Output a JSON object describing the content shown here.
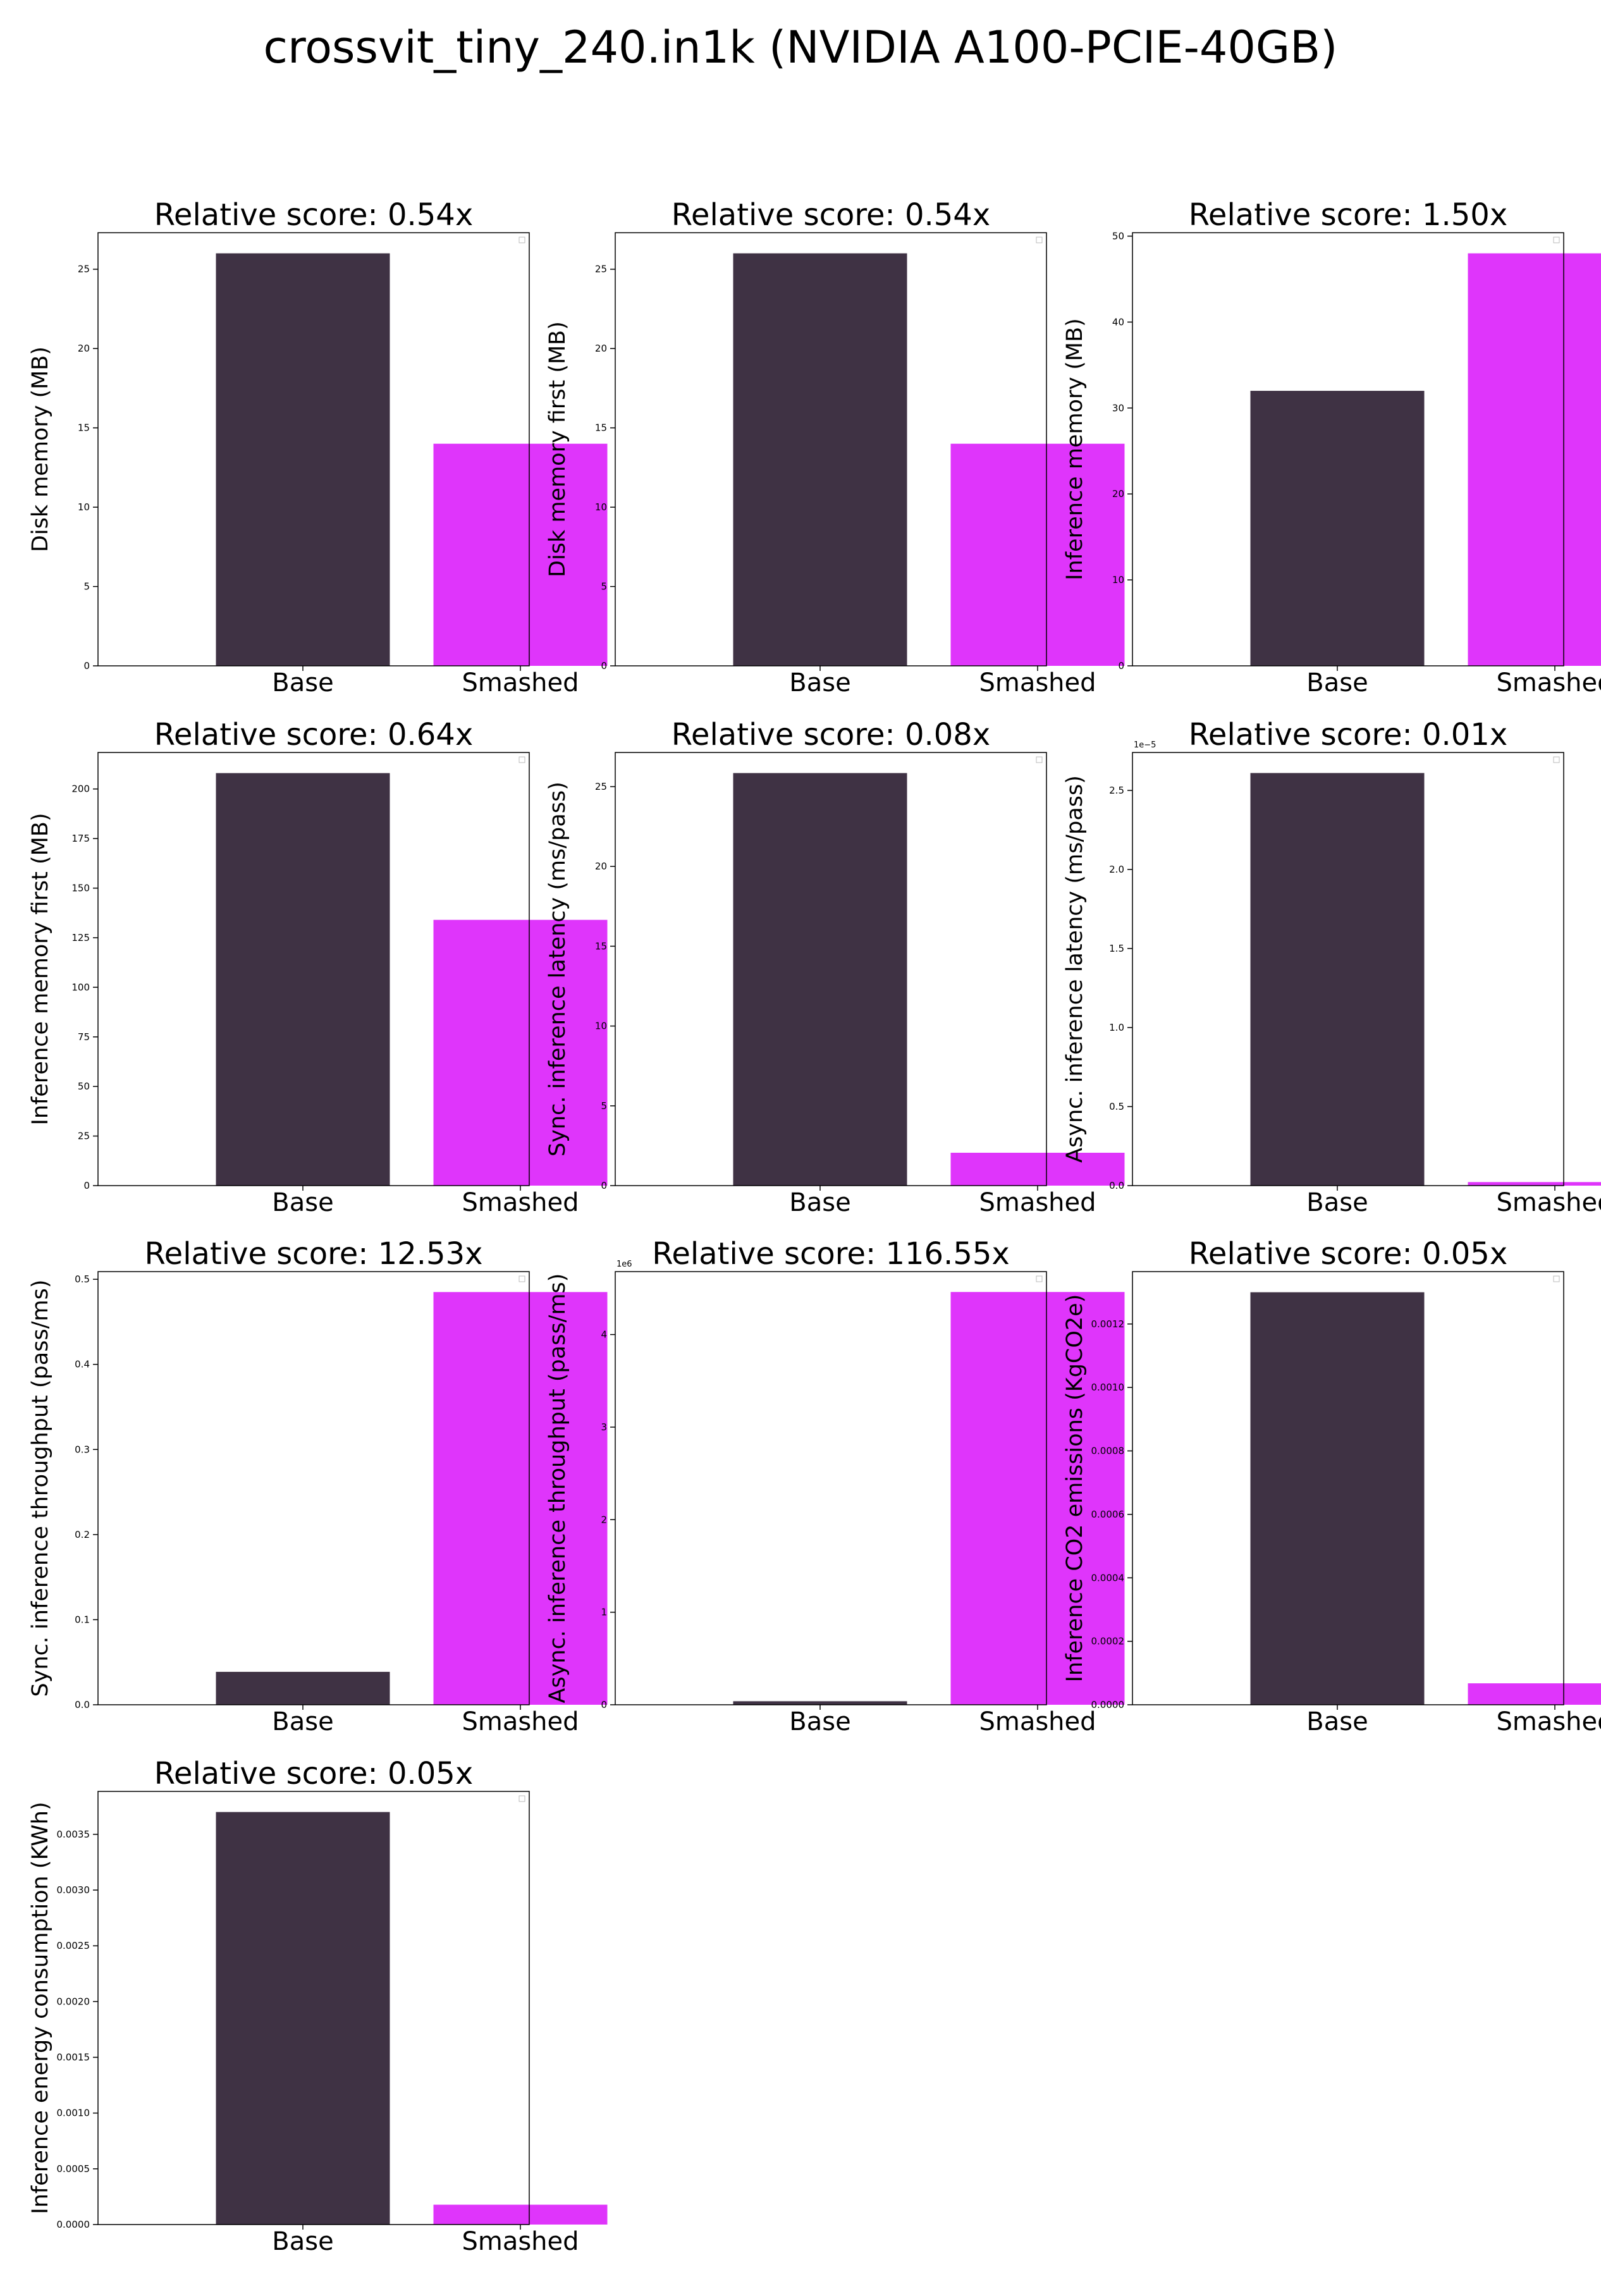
{
  "figure": {
    "title": "crossvit_tiny_240.in1k (NVIDIA A100-PCIE-40GB)"
  },
  "colors": {
    "base": "#3f3244",
    "smashed": "#df35fb"
  },
  "chart_data": [
    {
      "type": "bar",
      "title": "Relative score: 0.54x",
      "ylabel": "Disk memory (MB)",
      "categories": [
        "Base",
        "Smashed"
      ],
      "values": [
        26.0,
        14.0
      ],
      "ylim": [
        0,
        27.3
      ],
      "yticks": [
        0,
        5,
        10,
        15,
        20,
        25
      ],
      "yticklabels": [
        "0",
        "5",
        "10",
        "15",
        "20",
        "25"
      ],
      "offset_label": ""
    },
    {
      "type": "bar",
      "title": "Relative score: 0.54x",
      "ylabel": "Disk memory first (MB)",
      "categories": [
        "Base",
        "Smashed"
      ],
      "values": [
        26.0,
        14.0
      ],
      "ylim": [
        0,
        27.3
      ],
      "yticks": [
        0,
        5,
        10,
        15,
        20,
        25
      ],
      "yticklabels": [
        "0",
        "5",
        "10",
        "15",
        "20",
        "25"
      ],
      "offset_label": ""
    },
    {
      "type": "bar",
      "title": "Relative score: 1.50x",
      "ylabel": "Inference memory (MB)",
      "categories": [
        "Base",
        "Smashed"
      ],
      "values": [
        32.0,
        48.0
      ],
      "ylim": [
        0,
        50.4
      ],
      "yticks": [
        0,
        10,
        20,
        30,
        40,
        50
      ],
      "yticklabels": [
        "0",
        "10",
        "20",
        "30",
        "40",
        "50"
      ],
      "offset_label": ""
    },
    {
      "type": "bar",
      "title": "Relative score: 0.64x",
      "ylabel": "Inference memory first (MB)",
      "categories": [
        "Base",
        "Smashed"
      ],
      "values": [
        208.0,
        134.0
      ],
      "ylim": [
        0,
        218.4
      ],
      "yticks": [
        0,
        25,
        50,
        75,
        100,
        125,
        150,
        175,
        200
      ],
      "yticklabels": [
        "0",
        "25",
        "50",
        "75",
        "100",
        "125",
        "150",
        "175",
        "200"
      ],
      "offset_label": ""
    },
    {
      "type": "bar",
      "title": "Relative score: 0.08x",
      "ylabel": "Sync. inference latency (ms/pass)",
      "categories": [
        "Base",
        "Smashed"
      ],
      "values": [
        25.85,
        2.06
      ],
      "ylim": [
        0,
        27.14
      ],
      "yticks": [
        0,
        5,
        10,
        15,
        20,
        25
      ],
      "yticklabels": [
        "0",
        "5",
        "10",
        "15",
        "20",
        "25"
      ],
      "offset_label": ""
    },
    {
      "type": "bar",
      "title": "Relative score: 0.01x",
      "ylabel": "Async. inference latency (ms/pass)",
      "categories": [
        "Base",
        "Smashed"
      ],
      "values": [
        2.61,
        0.0224
      ],
      "ylim": [
        0,
        2.74
      ],
      "yticks": [
        0,
        0.5,
        1.0,
        1.5,
        2.0,
        2.5
      ],
      "yticklabels": [
        "0.0",
        "0.5",
        "1.0",
        "1.5",
        "2.0",
        "2.5"
      ],
      "offset_label": "1e−5"
    },
    {
      "type": "bar",
      "title": "Relative score: 12.53x",
      "ylabel": "Sync. inference throughput (pass/ms)",
      "categories": [
        "Base",
        "Smashed"
      ],
      "values": [
        0.0387,
        0.485
      ],
      "ylim": [
        0,
        0.509
      ],
      "yticks": [
        0,
        0.1,
        0.2,
        0.3,
        0.4,
        0.5
      ],
      "yticklabels": [
        "0.0",
        "0.1",
        "0.2",
        "0.3",
        "0.4",
        "0.5"
      ],
      "offset_label": ""
    },
    {
      "type": "bar",
      "title": "Relative score: 116.55x",
      "ylabel": "Async. inference throughput (pass/ms)",
      "categories": [
        "Base",
        "Smashed"
      ],
      "values": [
        0.0383,
        4.46
      ],
      "ylim": [
        0,
        4.68
      ],
      "yticks": [
        0,
        1,
        2,
        3,
        4
      ],
      "yticklabels": [
        "0",
        "1",
        "2",
        "3",
        "4"
      ],
      "offset_label": "1e6"
    },
    {
      "type": "bar",
      "title": "Relative score: 0.05x",
      "ylabel": "Inference CO2 emissions (KgCO2e)",
      "categories": [
        "Base",
        "Smashed"
      ],
      "values": [
        0.0013,
        6.76e-05
      ],
      "ylim": [
        0,
        0.001365
      ],
      "yticks": [
        0,
        0.0002,
        0.0004,
        0.0006,
        0.0008,
        0.001,
        0.0012
      ],
      "yticklabels": [
        "0.0000",
        "0.0002",
        "0.0004",
        "0.0006",
        "0.0008",
        "0.0010",
        "0.0012"
      ],
      "offset_label": ""
    },
    {
      "type": "bar",
      "title": "Relative score: 0.05x",
      "ylabel": "Inference energy consumption (KWh)",
      "categories": [
        "Base",
        "Smashed"
      ],
      "values": [
        0.0037,
        0.000178
      ],
      "ylim": [
        0,
        0.003885
      ],
      "yticks": [
        0,
        0.0005,
        0.001,
        0.0015,
        0.002,
        0.0025,
        0.003,
        0.0035
      ],
      "yticklabels": [
        "0.0000",
        "0.0005",
        "0.0010",
        "0.0015",
        "0.0020",
        "0.0025",
        "0.0030",
        "0.0035"
      ],
      "offset_label": ""
    }
  ]
}
